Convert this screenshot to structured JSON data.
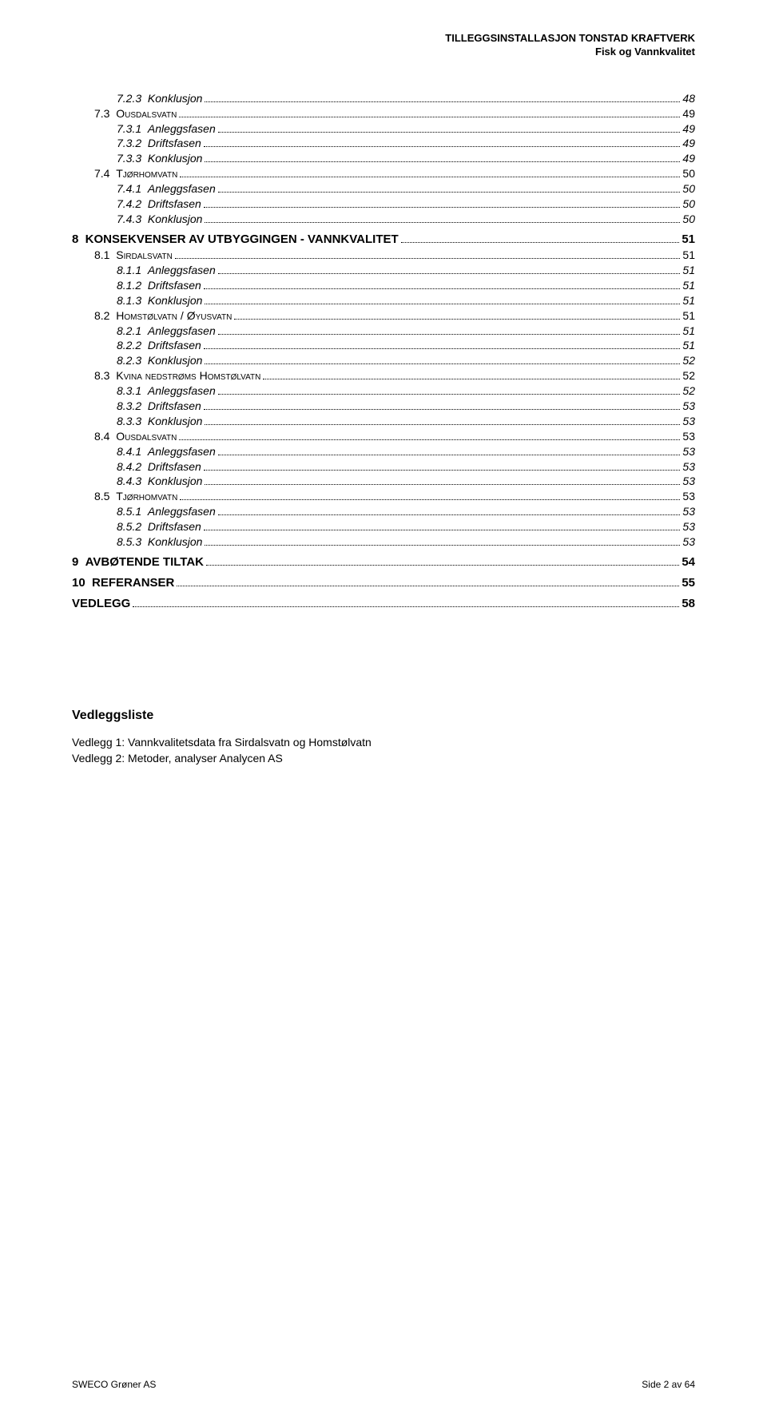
{
  "header": {
    "line1": "TILLEGGSINSTALLASJON TONSTAD KRAFTVERK",
    "line2": "Fisk og Vannkvalitet"
  },
  "toc": [
    {
      "level": 2,
      "num": "7.2.3",
      "title": "Konklusjon",
      "page": "48"
    },
    {
      "level": 1,
      "num": "7.3",
      "title": "Ousdalsvatn",
      "page": "49"
    },
    {
      "level": 2,
      "num": "7.3.1",
      "title": "Anleggsfasen",
      "page": "49"
    },
    {
      "level": 2,
      "num": "7.3.2",
      "title": "Driftsfasen",
      "page": "49"
    },
    {
      "level": 2,
      "num": "7.3.3",
      "title": "Konklusjon",
      "page": "49"
    },
    {
      "level": 1,
      "num": "7.4",
      "title": "Tjørhomvatn",
      "page": "50"
    },
    {
      "level": 2,
      "num": "7.4.1",
      "title": "Anleggsfasen",
      "page": "50"
    },
    {
      "level": 2,
      "num": "7.4.2",
      "title": "Driftsfasen",
      "page": "50"
    },
    {
      "level": 2,
      "num": "7.4.3",
      "title": "Konklusjon",
      "page": "50"
    },
    {
      "level": 0,
      "num": "8",
      "title": "KONSEKVENSER AV UTBYGGINGEN - VANNKVALITET",
      "page": "51"
    },
    {
      "level": 1,
      "num": "8.1",
      "title": "Sirdalsvatn",
      "page": "51"
    },
    {
      "level": 2,
      "num": "8.1.1",
      "title": "Anleggsfasen",
      "page": "51"
    },
    {
      "level": 2,
      "num": "8.1.2",
      "title": "Driftsfasen",
      "page": "51"
    },
    {
      "level": 2,
      "num": "8.1.3",
      "title": "Konklusjon",
      "page": "51"
    },
    {
      "level": 1,
      "num": "8.2",
      "title": "Homstølvatn / Øyusvatn",
      "page": "51"
    },
    {
      "level": 2,
      "num": "8.2.1",
      "title": "Anleggsfasen",
      "page": "51"
    },
    {
      "level": 2,
      "num": "8.2.2",
      "title": "Driftsfasen",
      "page": "51"
    },
    {
      "level": 2,
      "num": "8.2.3",
      "title": "Konklusjon",
      "page": "52"
    },
    {
      "level": 1,
      "num": "8.3",
      "title": "Kvina nedstrøms Homstølvatn",
      "page": "52"
    },
    {
      "level": 2,
      "num": "8.3.1",
      "title": "Anleggsfasen",
      "page": "52"
    },
    {
      "level": 2,
      "num": "8.3.2",
      "title": "Driftsfasen",
      "page": "53"
    },
    {
      "level": 2,
      "num": "8.3.3",
      "title": "Konklusjon",
      "page": "53"
    },
    {
      "level": 1,
      "num": "8.4",
      "title": "Ousdalsvatn",
      "page": "53"
    },
    {
      "level": 2,
      "num": "8.4.1",
      "title": "Anleggsfasen",
      "page": "53"
    },
    {
      "level": 2,
      "num": "8.4.2",
      "title": "Driftsfasen",
      "page": "53"
    },
    {
      "level": 2,
      "num": "8.4.3",
      "title": "Konklusjon",
      "page": "53"
    },
    {
      "level": 1,
      "num": "8.5",
      "title": "Tjørhomvatn",
      "page": "53"
    },
    {
      "level": 2,
      "num": "8.5.1",
      "title": "Anleggsfasen",
      "page": "53"
    },
    {
      "level": 2,
      "num": "8.5.2",
      "title": "Driftsfasen",
      "page": "53"
    },
    {
      "level": 2,
      "num": "8.5.3",
      "title": "Konklusjon",
      "page": "53"
    },
    {
      "level": 0,
      "num": "9",
      "title": "AVBØTENDE TILTAK",
      "page": "54"
    },
    {
      "level": 0,
      "num": "10",
      "title": "REFERANSER",
      "page": "55"
    },
    {
      "level": 0,
      "num": "",
      "title": "VEDLEGG",
      "page": "58"
    }
  ],
  "vedlegg": {
    "heading": "Vedleggsliste",
    "items": [
      "Vedlegg 1: Vannkvalitetsdata fra Sirdalsvatn og Homstølvatn",
      "Vedlegg 2: Metoder, analyser Analycen AS"
    ]
  },
  "footer": {
    "left": "SWECO Grøner AS",
    "right": "Side 2 av 64"
  }
}
